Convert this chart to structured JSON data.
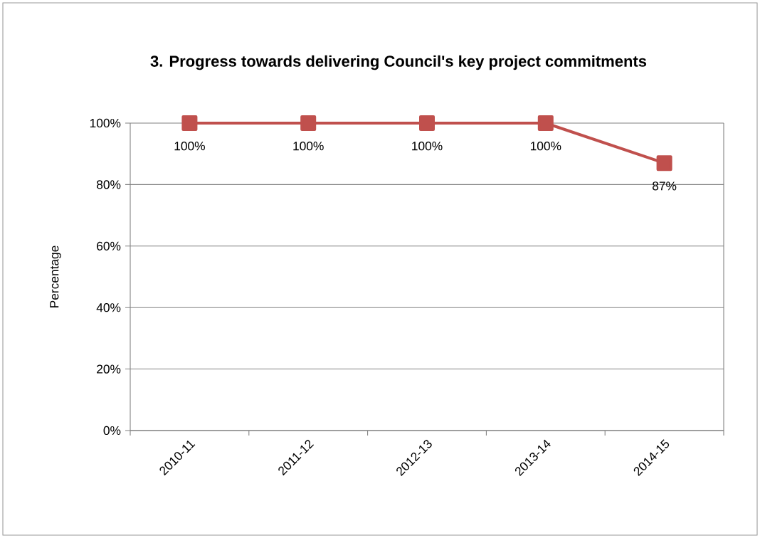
{
  "chart_data": {
    "type": "line",
    "title": "3. Progress towards delivering Council's key project commitments",
    "ylabel": "Percentage",
    "categories": [
      "2010-11",
      "2011-12",
      "2012-13",
      "2013-14",
      "2014-15"
    ],
    "series": [
      {
        "color": "#c0504d",
        "values": [
          100,
          100,
          100,
          100,
          87
        ],
        "value_labels": [
          "100%",
          "100%",
          "100%",
          "100%",
          "87%"
        ]
      }
    ],
    "ylim": [
      0,
      100
    ],
    "yticks": [
      {
        "value": 0,
        "label": "0%"
      },
      {
        "value": 20,
        "label": "20%"
      },
      {
        "value": 40,
        "label": "40%"
      },
      {
        "value": 60,
        "label": "60%"
      },
      {
        "value": 80,
        "label": "80%"
      },
      {
        "value": 100,
        "label": "100%"
      }
    ],
    "grid": "y",
    "marker": "square",
    "line_style": "solid"
  }
}
